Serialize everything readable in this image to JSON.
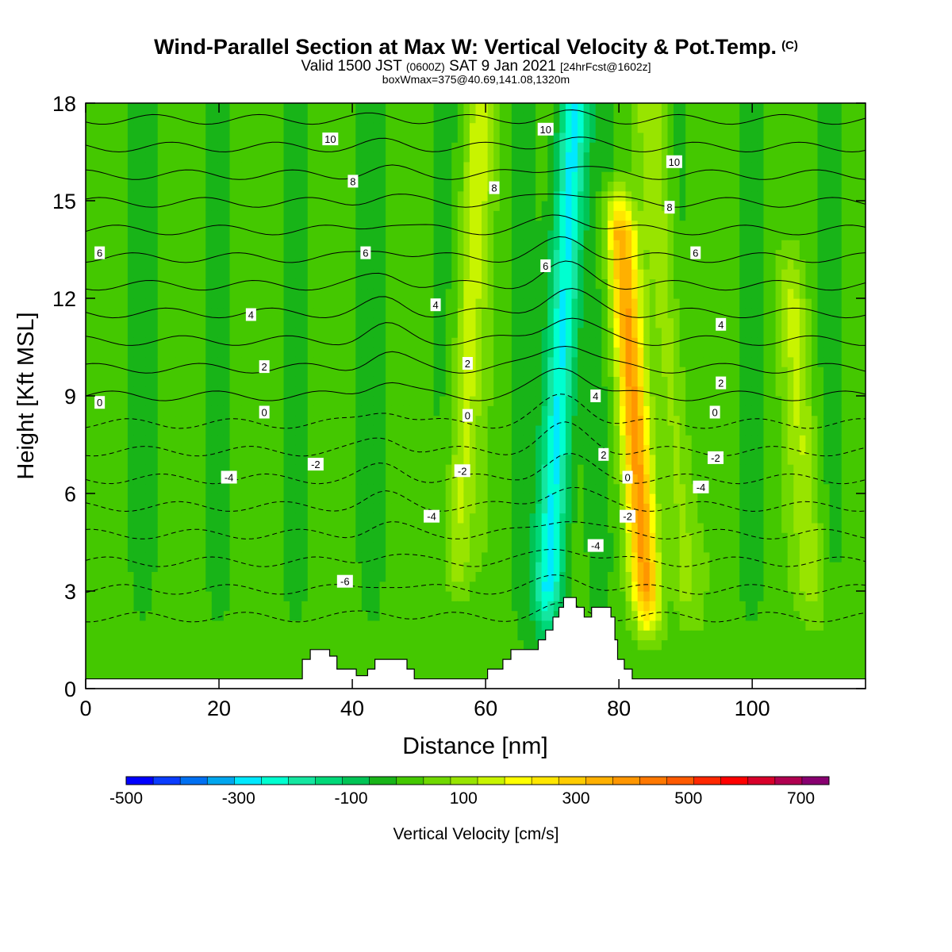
{
  "header": {
    "title": "Wind-Parallel Section at Max W: Vertical Velocity & Pot.Temp.",
    "copyright": "(C)",
    "valid_prefix": "Valid 1500 JST",
    "valid_z": "(0600Z)",
    "valid_date": "SAT 9 Jan 2021",
    "forecast": "[24hrFcst@1602z]",
    "boxwmax": "boxWmax=375@40.69,141.08,1320m"
  },
  "chart_data": {
    "type": "heatmap",
    "title": "Wind-Parallel Section at Max W: Vertical Velocity & Pot.Temp.",
    "xlabel": "Distance [nm]",
    "ylabel": "Height [Kft MSL]",
    "xlim": [
      0,
      117
    ],
    "ylim": [
      0,
      18
    ],
    "x_ticks": [
      0,
      20,
      40,
      60,
      80,
      100
    ],
    "y_ticks": [
      0,
      3,
      6,
      9,
      12,
      15,
      18
    ],
    "colorbar": {
      "label": "Vertical Velocity [cm/s]",
      "range": [
        -500,
        750
      ],
      "step": 50,
      "tick_labels": [
        -500,
        -300,
        -100,
        100,
        300,
        500,
        700
      ],
      "colors": [
        "#0000ff",
        "#0a3cff",
        "#0070f2",
        "#00a6ee",
        "#00e8ff",
        "#00ffd0",
        "#14e6a0",
        "#00d878",
        "#00c455",
        "#18b418",
        "#44c800",
        "#70d800",
        "#98e400",
        "#c8f400",
        "#ffff00",
        "#ffe600",
        "#ffcc00",
        "#ffb000",
        "#ff9600",
        "#ff7800",
        "#ff5a00",
        "#ff2800",
        "#ff0000",
        "#d8002a",
        "#b00050",
        "#880070"
      ]
    },
    "terrain_nm_kft": [
      [
        0,
        0.3
      ],
      [
        32.5,
        0.3
      ],
      [
        32.5,
        0.9
      ],
      [
        33.7,
        0.9
      ],
      [
        33.7,
        1.2
      ],
      [
        36.6,
        1.2
      ],
      [
        36.6,
        1.0
      ],
      [
        37.7,
        1.0
      ],
      [
        37.7,
        0.6
      ],
      [
        40.6,
        0.6
      ],
      [
        40.6,
        0.4
      ],
      [
        42.3,
        0.4
      ],
      [
        42.3,
        0.6
      ],
      [
        43.4,
        0.6
      ],
      [
        43.4,
        0.9
      ],
      [
        48.2,
        0.9
      ],
      [
        48.2,
        0.6
      ],
      [
        49.3,
        0.6
      ],
      [
        49.3,
        0.3
      ],
      [
        60.3,
        0.3
      ],
      [
        60.3,
        0.6
      ],
      [
        62.6,
        0.6
      ],
      [
        62.6,
        0.9
      ],
      [
        63.8,
        0.9
      ],
      [
        63.8,
        1.2
      ],
      [
        67.9,
        1.2
      ],
      [
        67.9,
        1.5
      ],
      [
        69.0,
        1.5
      ],
      [
        69.0,
        1.8
      ],
      [
        70.1,
        1.8
      ],
      [
        70.1,
        2.2
      ],
      [
        71.0,
        2.2
      ],
      [
        71.0,
        2.5
      ],
      [
        71.7,
        2.5
      ],
      [
        71.7,
        2.8
      ],
      [
        73.6,
        2.8
      ],
      [
        73.6,
        2.5
      ],
      [
        74.8,
        2.5
      ],
      [
        74.8,
        2.2
      ],
      [
        75.9,
        2.2
      ],
      [
        75.9,
        2.5
      ],
      [
        78.8,
        2.5
      ],
      [
        78.8,
        2.2
      ],
      [
        79.4,
        2.2
      ],
      [
        79.4,
        1.5
      ],
      [
        79.8,
        1.5
      ],
      [
        79.8,
        0.9
      ],
      [
        80.8,
        0.9
      ],
      [
        80.8,
        0.6
      ],
      [
        82.0,
        0.6
      ],
      [
        82.0,
        0.3
      ],
      [
        117,
        0.3
      ]
    ],
    "vertical_velocity_structures": [
      {
        "feature": "downdraft",
        "x_nm": 71,
        "height_kft": [
          3,
          18
        ],
        "min_cm_s": -300
      },
      {
        "feature": "updraft",
        "x_nm": 82,
        "height_kft": [
          3,
          14
        ],
        "max_cm_s": 375
      },
      {
        "feature": "updraft",
        "x_nm": 57,
        "height_kft": [
          4,
          18
        ],
        "max_cm_s": 150
      },
      {
        "feature": "updraft",
        "x_nm": 88,
        "height_kft": [
          3,
          18
        ],
        "max_cm_s": 120
      },
      {
        "feature": "updraft",
        "x_nm": 107,
        "height_kft": [
          3,
          12
        ],
        "max_cm_s": 120
      }
    ],
    "theta_contour_labels": [
      {
        "text": "10",
        "x_nm": 36.7,
        "y_kft": 16.9
      },
      {
        "text": "8",
        "x_nm": 40.1,
        "y_kft": 15.6
      },
      {
        "text": "6",
        "x_nm": 42.0,
        "y_kft": 13.4
      },
      {
        "text": "6",
        "x_nm": 2.1,
        "y_kft": 13.4
      },
      {
        "text": "4",
        "x_nm": 24.8,
        "y_kft": 11.5
      },
      {
        "text": "2",
        "x_nm": 26.8,
        "y_kft": 9.9
      },
      {
        "text": "0",
        "x_nm": 2.1,
        "y_kft": 8.8
      },
      {
        "text": "0",
        "x_nm": 26.8,
        "y_kft": 8.5
      },
      {
        "text": "-2",
        "x_nm": 34.5,
        "y_kft": 6.9
      },
      {
        "text": "-4",
        "x_nm": 21.5,
        "y_kft": 6.5
      },
      {
        "text": "-6",
        "x_nm": 38.9,
        "y_kft": 3.3
      },
      {
        "text": "4",
        "x_nm": 52.5,
        "y_kft": 11.8
      },
      {
        "text": "2",
        "x_nm": 57.3,
        "y_kft": 10.0
      },
      {
        "text": "0",
        "x_nm": 57.3,
        "y_kft": 8.4
      },
      {
        "text": "-2",
        "x_nm": 56.5,
        "y_kft": 6.7
      },
      {
        "text": "-4",
        "x_nm": 51.9,
        "y_kft": 5.3
      },
      {
        "text": "8",
        "x_nm": 61.3,
        "y_kft": 15.4
      },
      {
        "text": "10",
        "x_nm": 69.0,
        "y_kft": 17.2
      },
      {
        "text": "6",
        "x_nm": 69.0,
        "y_kft": 13.0
      },
      {
        "text": "4",
        "x_nm": 76.5,
        "y_kft": 9.0
      },
      {
        "text": "2",
        "x_nm": 77.7,
        "y_kft": 7.2
      },
      {
        "text": "-4",
        "x_nm": 76.5,
        "y_kft": 4.4
      },
      {
        "text": "0",
        "x_nm": 81.3,
        "y_kft": 6.5
      },
      {
        "text": "-2",
        "x_nm": 81.3,
        "y_kft": 5.3
      },
      {
        "text": "10",
        "x_nm": 88.3,
        "y_kft": 16.2
      },
      {
        "text": "8",
        "x_nm": 87.6,
        "y_kft": 14.8
      },
      {
        "text": "6",
        "x_nm": 91.5,
        "y_kft": 13.4
      },
      {
        "text": "4",
        "x_nm": 95.3,
        "y_kft": 11.2
      },
      {
        "text": "2",
        "x_nm": 95.3,
        "y_kft": 9.4
      },
      {
        "text": "0",
        "x_nm": 94.4,
        "y_kft": 8.5
      },
      {
        "text": "-2",
        "x_nm": 94.5,
        "y_kft": 7.1
      },
      {
        "text": "-4",
        "x_nm": 92.3,
        "y_kft": 6.2
      }
    ],
    "grid": false,
    "legend": "bottom"
  }
}
